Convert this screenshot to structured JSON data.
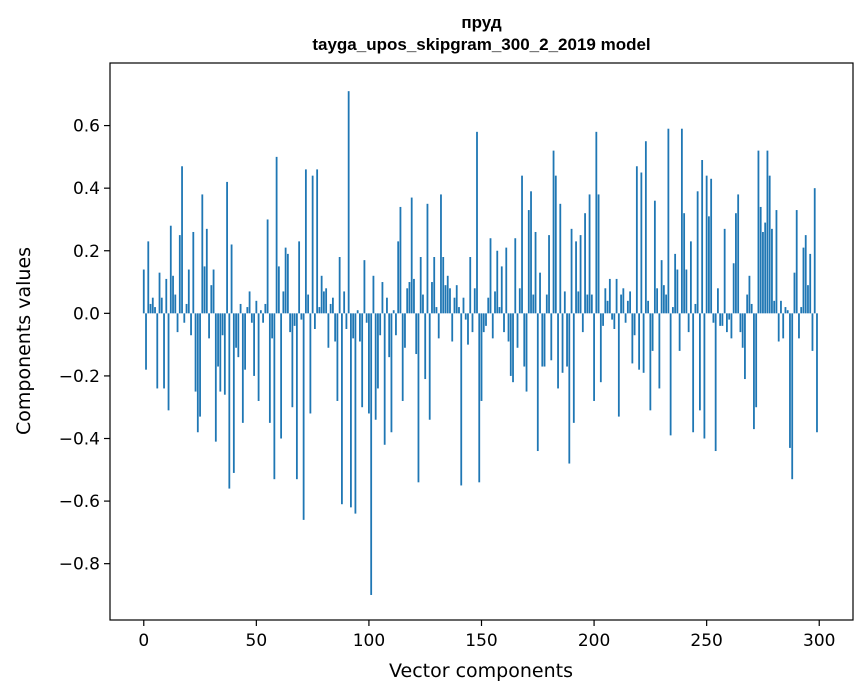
{
  "chart_data": {
    "type": "bar",
    "title": "пруд",
    "subtitle": "tayga_upos_skipgram_300_2_2019 model",
    "xlabel": "Vector components",
    "ylabel": "Components values",
    "xlim": [
      -15,
      315
    ],
    "ylim": [
      -0.98,
      0.8
    ],
    "xticks": [
      0,
      50,
      100,
      150,
      200,
      250,
      300
    ],
    "xtick_labels": [
      "0",
      "50",
      "100",
      "150",
      "200",
      "250",
      "300"
    ],
    "yticks": [
      -0.8,
      -0.6,
      -0.4,
      -0.2,
      0.0,
      0.2,
      0.4,
      0.6
    ],
    "ytick_labels": [
      "−0.8",
      "−0.6",
      "−0.4",
      "−0.2",
      "0.0",
      "0.2",
      "0.4",
      "0.6"
    ],
    "bar_color": "#1f77b4",
    "values": [
      0.14,
      -0.18,
      0.23,
      0.03,
      0.05,
      0.02,
      -0.24,
      0.13,
      0.05,
      -0.24,
      0.11,
      -0.31,
      0.28,
      0.12,
      0.06,
      -0.06,
      0.25,
      0.47,
      -0.03,
      0.03,
      0.14,
      -0.07,
      0.26,
      -0.25,
      -0.38,
      -0.33,
      0.38,
      0.15,
      0.27,
      -0.08,
      0.09,
      0.14,
      -0.41,
      -0.17,
      -0.25,
      -0.07,
      -0.26,
      0.42,
      -0.56,
      0.22,
      -0.51,
      -0.11,
      -0.14,
      0.03,
      -0.35,
      -0.18,
      0.02,
      0.07,
      -0.03,
      -0.2,
      0.04,
      -0.28,
      0.01,
      -0.03,
      0.03,
      0.3,
      -0.35,
      -0.08,
      -0.53,
      0.5,
      0.15,
      -0.4,
      0.07,
      0.21,
      0.19,
      -0.06,
      -0.3,
      -0.04,
      -0.53,
      0.23,
      -0.02,
      -0.66,
      0.46,
      0.06,
      -0.32,
      0.44,
      -0.05,
      0.46,
      0.02,
      0.12,
      0.07,
      0.08,
      -0.11,
      0.03,
      0.05,
      -0.09,
      -0.28,
      0.18,
      -0.61,
      0.07,
      -0.05,
      0.71,
      -0.62,
      -0.08,
      -0.64,
      0.01,
      -0.09,
      -0.3,
      0.17,
      -0.03,
      -0.32,
      -0.9,
      0.12,
      -0.34,
      -0.24,
      -0.07,
      0.1,
      -0.42,
      0.05,
      -0.14,
      -0.38,
      0.01,
      -0.07,
      0.23,
      0.34,
      -0.28,
      -0.11,
      0.08,
      0.1,
      0.37,
      0.11,
      -0.13,
      -0.54,
      0.18,
      0.06,
      -0.21,
      0.35,
      -0.34,
      0.1,
      0.18,
      0.02,
      -0.08,
      0.38,
      0.18,
      0.09,
      0.12,
      0.08,
      -0.09,
      0.05,
      0.09,
      0.02,
      -0.55,
      0.05,
      -0.02,
      -0.1,
      0.18,
      -0.06,
      0.08,
      0.58,
      -0.54,
      -0.28,
      -0.06,
      -0.04,
      0.05,
      0.24,
      -0.08,
      0.07,
      0.2,
      0.02,
      0.15,
      -0.06,
      0.21,
      -0.09,
      -0.2,
      -0.22,
      0.24,
      -0.11,
      0.08,
      0.44,
      -0.17,
      -0.25,
      0.33,
      0.39,
      0.06,
      0.26,
      -0.44,
      0.13,
      -0.17,
      -0.17,
      0.06,
      0.25,
      -0.15,
      0.52,
      0.44,
      -0.24,
      0.35,
      -0.19,
      0.07,
      -0.17,
      -0.48,
      0.27,
      -0.35,
      0.23,
      0.07,
      0.25,
      -0.06,
      0.32,
      0.06,
      0.38,
      0.06,
      -0.28,
      0.58,
      0.38,
      -0.22,
      -0.04,
      0.08,
      0.04,
      0.11,
      -0.02,
      -0.05,
      0.11,
      -0.33,
      0.06,
      0.08,
      -0.03,
      0.04,
      0.07,
      -0.16,
      -0.07,
      0.47,
      -0.18,
      0.45,
      -0.19,
      0.55,
      0.04,
      -0.31,
      -0.12,
      0.36,
      0.08,
      -0.24,
      0.17,
      0.09,
      0.06,
      0.59,
      -0.39,
      0.02,
      0.19,
      0.14,
      -0.12,
      0.59,
      0.32,
      0.14,
      -0.06,
      0.23,
      -0.38,
      0.03,
      0.39,
      -0.31,
      0.49,
      -0.4,
      0.44,
      0.31,
      0.43,
      -0.03,
      -0.44,
      0.08,
      -0.04,
      -0.04,
      0.27,
      -0.06,
      -0.02,
      -0.08,
      0.16,
      0.32,
      0.38,
      -0.06,
      -0.11,
      -0.21,
      0.06,
      0.12,
      0.03,
      -0.37,
      -0.3,
      0.52,
      0.34,
      0.26,
      0.29,
      0.52,
      0.44,
      0.27,
      0.04,
      0.33,
      -0.09,
      0.04,
      -0.08,
      0.02,
      0.01,
      -0.43,
      -0.53,
      0.13,
      0.33,
      -0.08,
      0.02,
      0.21,
      0.25,
      0.09,
      0.19,
      -0.12,
      0.4,
      -0.38
    ]
  }
}
